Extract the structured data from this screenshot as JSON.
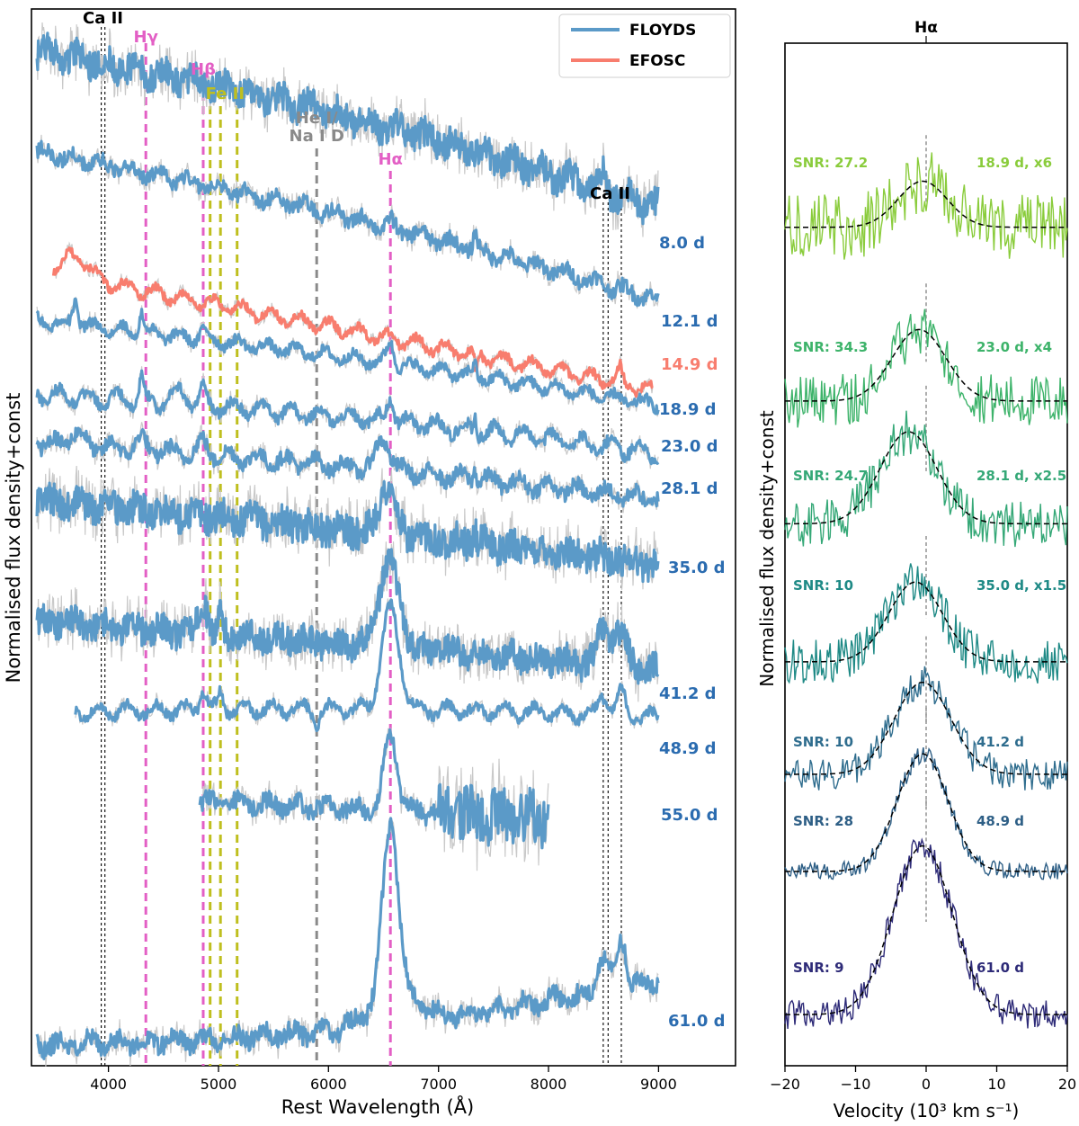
{
  "chart_data": [
    {
      "type": "line",
      "panel": "left",
      "xlabel": "Rest Wavelength (Å)",
      "ylabel": "Normalised flux density+const",
      "xlim": [
        3300,
        9700
      ],
      "ylim": [
        0,
        100
      ],
      "xticks": [
        4000,
        5000,
        6000,
        7000,
        8000,
        9000
      ],
      "legend": {
        "location": "top-right",
        "entries": [
          {
            "label": "FLOYDS",
            "color": "#5b9ac8"
          },
          {
            "label": "EFOSC",
            "color": "#f87d6e"
          }
        ]
      },
      "line_markers": [
        {
          "id": "caii_l1",
          "x": 3934,
          "style": "thin",
          "color": "#000000"
        },
        {
          "id": "caii_l2",
          "x": 3968,
          "style": "thin",
          "color": "#000000"
        },
        {
          "id": "hg",
          "x": 4340,
          "style": "dashed",
          "color": "#e35fc5"
        },
        {
          "id": "hb",
          "x": 4861,
          "style": "dashed",
          "color": "#e35fc5"
        },
        {
          "id": "feii1",
          "x": 4924,
          "style": "dashed",
          "color": "#bfbf1f"
        },
        {
          "id": "feii2",
          "x": 5018,
          "style": "dashed",
          "color": "#bfbf1f"
        },
        {
          "id": "feii3",
          "x": 5169,
          "style": "dashed",
          "color": "#bfbf1f"
        },
        {
          "id": "hei",
          "x": 5893,
          "style": "dashed",
          "color": "#8a8a8a"
        },
        {
          "id": "ha",
          "x": 6563,
          "style": "dashed",
          "color": "#e35fc5"
        },
        {
          "id": "caii_r1",
          "x": 8498,
          "style": "thin",
          "color": "#000000"
        },
        {
          "id": "caii_r2",
          "x": 8542,
          "style": "thin",
          "color": "#000000"
        },
        {
          "id": "caii_r3",
          "x": 8662,
          "style": "thin",
          "color": "#000000"
        }
      ],
      "line_labels": [
        {
          "text": "Ca II",
          "x": 3950,
          "color": "#000000"
        },
        {
          "text": "Hγ",
          "x": 4340,
          "color": "#e35fc5"
        },
        {
          "text": "Hβ",
          "x": 4861,
          "color": "#e35fc5"
        },
        {
          "text": "Fe II",
          "x": 5060,
          "color": "#bfbf1f"
        },
        {
          "text": "He I/",
          "x": 5893,
          "color": "#8a8a8a"
        },
        {
          "text": "Na I D",
          "x": 5893,
          "color": "#8a8a8a"
        },
        {
          "text": "Hα",
          "x": 6563,
          "color": "#e35fc5"
        },
        {
          "text": "Ca II",
          "x": 8560,
          "color": "#000000"
        }
      ],
      "series": [
        {
          "name": "FLOYDS",
          "epoch": "8.0 d",
          "color": "#5b9ac8",
          "label_color": "#2b6cb0",
          "x_start": 3350,
          "x_end": 9000,
          "y_start": 96,
          "y_end": 81.2,
          "curvature": 1.2,
          "noise": 2.0,
          "wiggle": 0.6,
          "seed": 1,
          "features": [
            {
              "x": 8498,
              "a": 1.5,
              "w": 15
            }
          ]
        },
        {
          "name": "FLOYDS",
          "epoch": "12.1 d",
          "color": "#5b9ac8",
          "label_color": "#2b6cb0",
          "x_start": 3350,
          "x_end": 9000,
          "y_start": 86.5,
          "y_end": 72.5,
          "curvature": 0.8,
          "noise": 1.0,
          "wiggle": 0.5,
          "seed": 2,
          "features": [
            {
              "x": 7330,
              "a": 1.5,
              "w": 12
            },
            {
              "x": 6563,
              "a": 0.8,
              "w": 15
            }
          ]
        },
        {
          "name": "EFOSC",
          "epoch": "14.9 d",
          "color": "#f87d6e",
          "label_color": "#f87d6e",
          "x_start": 3500,
          "x_end": 8950,
          "y_start": 75,
          "y_end": 64,
          "curvature": 0.0,
          "noise": 0.6,
          "wiggle": 0.6,
          "seed": 3,
          "features": [
            {
              "x": 3700,
              "a": 2.0,
              "w": 120
            },
            {
              "x": 7340,
              "a": -2.2,
              "w": 12
            },
            {
              "x": 8650,
              "a": 1.2,
              "w": 20
            }
          ]
        },
        {
          "name": "FLOYDS",
          "epoch": "18.9 d",
          "color": "#5b9ac8",
          "label_color": "#2b6cb0",
          "x_start": 3350,
          "x_end": 9000,
          "y_start": 70.5,
          "y_end": 62.5,
          "curvature": 0.5,
          "noise": 0.7,
          "wiggle": 0.5,
          "seed": 4,
          "features": [
            {
              "x": 3700,
              "a": 2.5,
              "w": 25
            },
            {
              "x": 4300,
              "a": 2.0,
              "w": 20
            },
            {
              "x": 4861,
              "a": 1.0,
              "w": 30
            },
            {
              "x": 6563,
              "a": 2.0,
              "w": 30
            },
            {
              "x": 7330,
              "a": 1.3,
              "w": 12
            }
          ]
        },
        {
          "name": "FLOYDS",
          "epoch": "23.0 d",
          "color": "#5b9ac8",
          "label_color": "#2b6cb0",
          "x_start": 3350,
          "x_end": 9000,
          "y_start": 63.5,
          "y_end": 58.0,
          "curvature": 0.6,
          "noise": 0.8,
          "wiggle": 0.7,
          "seed": 5,
          "features": [
            {
              "x": 4300,
              "a": 2.3,
              "w": 20
            },
            {
              "x": 4650,
              "a": 1.2,
              "w": 60
            },
            {
              "x": 4861,
              "a": 1.2,
              "w": 30
            },
            {
              "x": 6563,
              "a": 2.5,
              "w": 30
            },
            {
              "x": 7330,
              "a": 1.5,
              "w": 12
            }
          ]
        },
        {
          "name": "FLOYDS",
          "epoch": "28.1 d",
          "color": "#5b9ac8",
          "label_color": "#2b6cb0",
          "x_start": 3350,
          "x_end": 9000,
          "y_start": 59.0,
          "y_end": 53.6,
          "curvature": 0.4,
          "noise": 1.0,
          "wiggle": 0.6,
          "seed": 6,
          "features": [
            {
              "x": 3700,
              "a": 1.2,
              "w": 60
            },
            {
              "x": 4300,
              "a": 1.0,
              "w": 40
            },
            {
              "x": 4861,
              "a": 1.2,
              "w": 40
            },
            {
              "x": 6500,
              "a": 3.0,
              "w": 60
            },
            {
              "x": 7330,
              "a": 1.5,
              "w": 12
            }
          ]
        },
        {
          "name": "FLOYDS",
          "epoch": "35.0 d",
          "color": "#5b9ac8",
          "label_color": "#2b6cb0",
          "x_start": 3350,
          "x_end": 9000,
          "y_start": 53.5,
          "y_end": 47.5,
          "curvature": 0.2,
          "noise": 2.2,
          "wiggle": 0.4,
          "seed": 7,
          "features": [
            {
              "x": 6530,
              "a": 4.5,
              "w": 70
            },
            {
              "x": 7330,
              "a": 1.3,
              "w": 12
            }
          ]
        },
        {
          "name": "FLOYDS",
          "epoch": "41.2 d",
          "color": "#5b9ac8",
          "label_color": "#2b6cb0",
          "x_start": 3350,
          "x_end": 9000,
          "y_start": 42.0,
          "y_end": 37.5,
          "curvature": 0.2,
          "noise": 2.0,
          "wiggle": 0.4,
          "seed": 8,
          "features": [
            {
              "x": 4861,
              "a": 3.0,
              "w": 40
            },
            {
              "x": 5018,
              "a": 2.0,
              "w": 20
            },
            {
              "x": 6550,
              "a": 8.0,
              "w": 90
            },
            {
              "x": 8500,
              "a": 3.0,
              "w": 60
            },
            {
              "x": 8650,
              "a": 3.0,
              "w": 60
            }
          ]
        },
        {
          "name": "FLOYDS",
          "epoch": "48.9 d",
          "color": "#5b9ac8",
          "label_color": "#2b6cb0",
          "x_start": 3700,
          "x_end": 9000,
          "y_start": 33.5,
          "y_end": 33.0,
          "curvature": 0.5,
          "noise": 0.7,
          "wiggle": 0.6,
          "seed": 9,
          "features": [
            {
              "x": 4861,
              "a": 2.0,
              "w": 30
            },
            {
              "x": 5018,
              "a": 1.5,
              "w": 20
            },
            {
              "x": 5893,
              "a": -1.2,
              "w": 25
            },
            {
              "x": 6563,
              "a": 9.5,
              "w": 80
            },
            {
              "x": 8500,
              "a": 2.0,
              "w": 40
            },
            {
              "x": 8662,
              "a": 2.0,
              "w": 40
            }
          ]
        },
        {
          "name": "FLOYDS",
          "epoch": "55.0 d",
          "color": "#5b9ac8",
          "label_color": "#2b6cb0",
          "x_start": 4830,
          "x_end": 8000,
          "y_start": 25.0,
          "y_end": 23.5,
          "curvature": 0.0,
          "noise": 1.2,
          "wiggle": 0.5,
          "seed": 10,
          "features": [
            {
              "x": 6563,
              "a": 7.0,
              "w": 60
            }
          ],
          "noise_ramp": {
            "from": 7000,
            "to": 8000,
            "factor": 3.0
          }
        },
        {
          "name": "FLOYDS",
          "epoch": "61.0 d",
          "color": "#5b9ac8",
          "label_color": "#2b6cb0",
          "x_start": 3350,
          "x_end": 9000,
          "y_start": 2.0,
          "y_end": 8.0,
          "curvature": -1.5,
          "noise": 1.3,
          "wiggle": 0.5,
          "seed": 11,
          "features": [
            {
              "x": 6563,
              "a": 16.0,
              "w": 70
            },
            {
              "x": 6600,
              "a": 3.0,
              "w": 200
            },
            {
              "x": 8500,
              "a": 3.5,
              "w": 50
            },
            {
              "x": 8662,
              "a": 5.0,
              "w": 40
            }
          ]
        }
      ]
    },
    {
      "type": "line",
      "panel": "right",
      "title": "Hα",
      "xlabel": "Velocity (10³ km s⁻¹)",
      "ylabel": "Normalised flux density+const",
      "xlim": [
        -20,
        20
      ],
      "ylim": [
        0,
        100
      ],
      "xticks": [
        -20,
        -10,
        0,
        10,
        20
      ],
      "rest_marker": {
        "x": 0,
        "style": "dashed",
        "color": "#999999"
      },
      "series": [
        {
          "name": "18.9 d, x6",
          "snr": "SNR: 27.2",
          "color": "#8acc3c",
          "baseline": 82.0,
          "amp": 4.5,
          "sigma": 3.5,
          "center": -0.5,
          "noise": 3.2,
          "seed": 21
        },
        {
          "name": "23.0 d, x4",
          "snr": "SNR: 34.3",
          "color": "#3db36a",
          "baseline": 65.0,
          "amp": 7.0,
          "sigma": 3.8,
          "center": -1.0,
          "noise": 2.6,
          "seed": 22
        },
        {
          "name": "28.1 d, x2.5",
          "snr": "SNR: 24.7",
          "color": "#35a877",
          "baseline": 53.0,
          "amp": 9.0,
          "sigma": 4.0,
          "center": -2.5,
          "noise": 2.3,
          "seed": 23
        },
        {
          "name": "35.0 d, x1.5",
          "snr": "SNR: 10",
          "color": "#1f8a86",
          "baseline": 39.5,
          "amp": 7.8,
          "sigma": 3.8,
          "center": -1.5,
          "noise": 2.2,
          "seed": 24
        },
        {
          "name": "41.2 d",
          "snr": "SNR: 10",
          "color": "#2f6d8e",
          "baseline": 28.5,
          "amp": 9.0,
          "sigma": 4.0,
          "center": -0.5,
          "noise": 1.6,
          "seed": 25
        },
        {
          "name": "48.9 d",
          "snr": "SNR: 28",
          "color": "#2e5f86",
          "baseline": 19.0,
          "amp": 11.5,
          "sigma": 3.6,
          "center": -0.5,
          "noise": 0.9,
          "seed": 26
        },
        {
          "name": "61.0 d",
          "snr": "SNR: 9",
          "color": "#2e2b78",
          "baseline": 5.0,
          "amp": 16.5,
          "sigma": 4.2,
          "center": -0.5,
          "noise": 1.4,
          "seed": 27
        }
      ]
    }
  ]
}
